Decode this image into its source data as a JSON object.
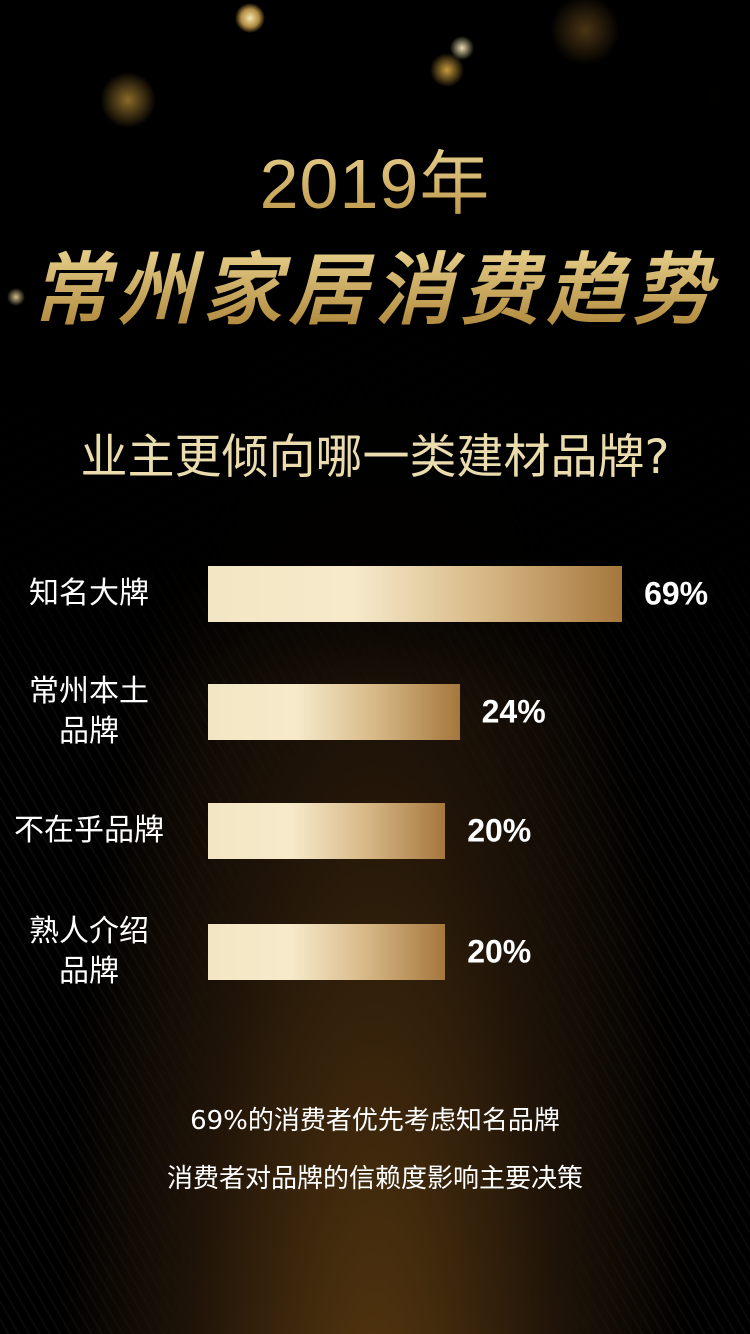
{
  "header": {
    "year": "2019年",
    "title": "常州家居消费趋势"
  },
  "chart_data": {
    "type": "bar",
    "orientation": "horizontal",
    "title": "业主更倾向哪一类建材品牌?",
    "categories": [
      [
        "知名大牌"
      ],
      [
        "常州本土",
        "品牌"
      ],
      [
        "不在乎品牌"
      ],
      [
        "熟人介绍",
        "品牌"
      ]
    ],
    "values": [
      69,
      24,
      20,
      20
    ],
    "value_labels": [
      "69%",
      "24%",
      "20%",
      "20%"
    ],
    "colors": {
      "bar_start": "#f3e6c4",
      "bar_end": "#a5773c"
    }
  },
  "notes": [
    "69%的消费者优先考虑知名品牌",
    "消费者对品牌的信赖度影响主要决策"
  ]
}
